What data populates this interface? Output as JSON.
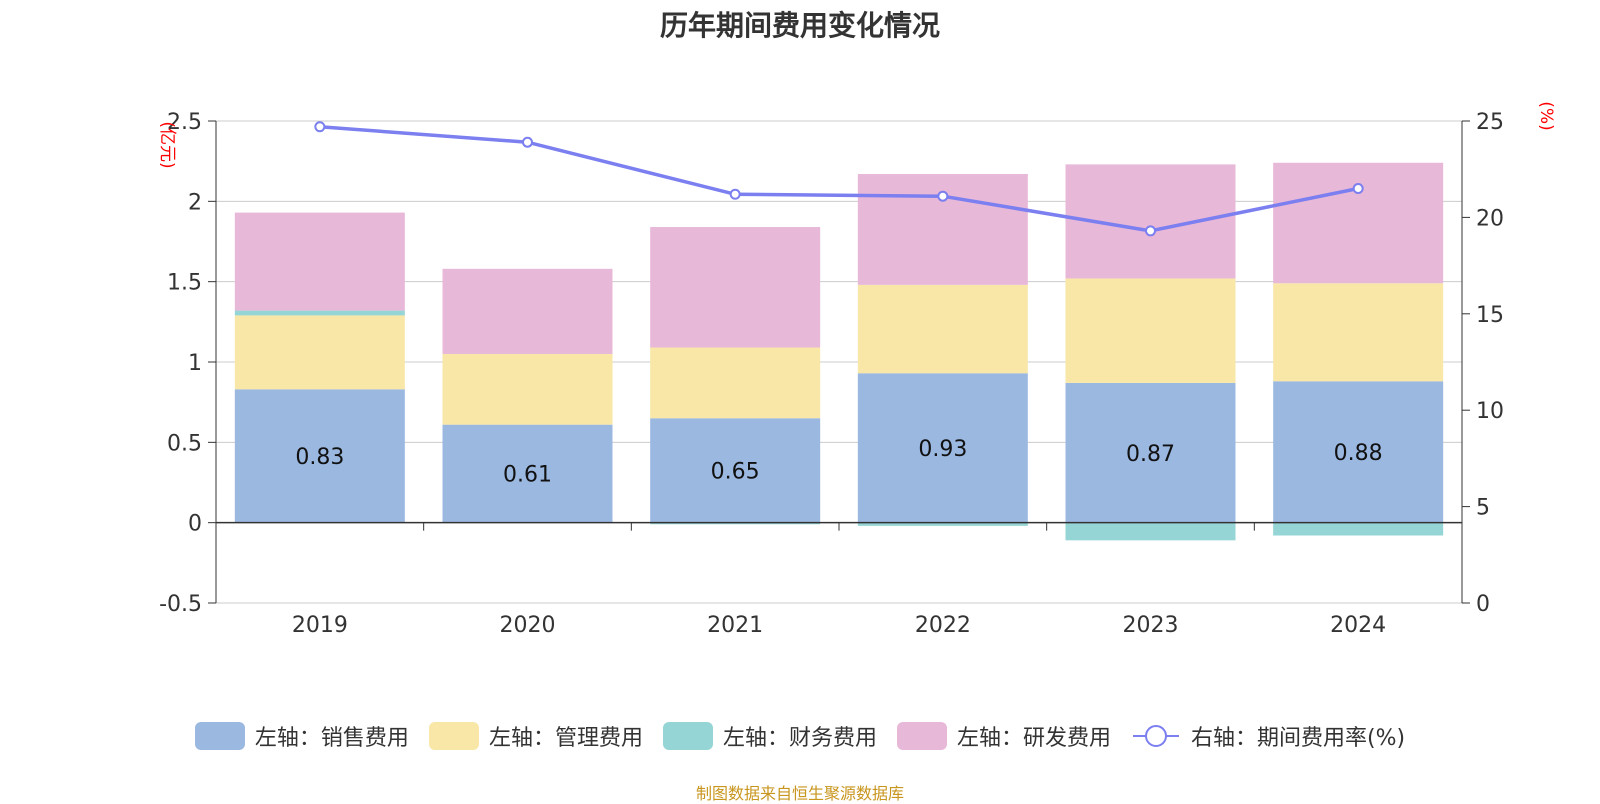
{
  "chart_data": {
    "type": "bar",
    "stacked": true,
    "title": "历年期间费用变化情况",
    "categories": [
      "2019",
      "2020",
      "2021",
      "2022",
      "2023",
      "2024"
    ],
    "left_axis": {
      "unit_label": "(亿元)",
      "ylim": [
        -0.5,
        2.5
      ],
      "ticks": [
        -0.5,
        0,
        0.5,
        1,
        1.5,
        2,
        2.5
      ],
      "tick_labels": [
        "-0.5",
        "0",
        "0.5",
        "1",
        "1.5",
        "2",
        "2.5"
      ]
    },
    "right_axis": {
      "unit_label": "(%)",
      "ylim": [
        0,
        25
      ],
      "ticks": [
        0,
        5,
        10,
        15,
        20,
        25
      ],
      "tick_labels": [
        "0",
        "5",
        "10",
        "15",
        "20",
        "25"
      ]
    },
    "series": [
      {
        "name": "左轴：销售费用",
        "axis": "left",
        "kind": "bar",
        "color": "#9bb8e1",
        "values": [
          0.83,
          0.61,
          0.65,
          0.93,
          0.87,
          0.88
        ],
        "labels": [
          "0.83",
          "0.61",
          "0.65",
          "0.93",
          "0.87",
          "0.88"
        ]
      },
      {
        "name": "左轴：管理费用",
        "axis": "left",
        "kind": "bar",
        "color": "#f8e7a7",
        "values": [
          0.46,
          0.44,
          0.44,
          0.55,
          0.65,
          0.61
        ]
      },
      {
        "name": "左轴：财务费用",
        "axis": "left",
        "kind": "bar",
        "color": "#96d5d5",
        "values": [
          0.03,
          0.0,
          -0.01,
          -0.02,
          -0.11,
          -0.08
        ]
      },
      {
        "name": "左轴：研发费用",
        "axis": "left",
        "kind": "bar",
        "color": "#e8b8d9",
        "values": [
          0.61,
          0.53,
          0.75,
          0.69,
          0.71,
          0.75
        ]
      },
      {
        "name": "右轴：期间费用率(%)",
        "axis": "right",
        "kind": "line",
        "color": "#7b7fef",
        "values": [
          24.7,
          23.9,
          21.2,
          21.1,
          19.3,
          21.5
        ]
      }
    ],
    "source_note": "制图数据来自恒生聚源数据库",
    "unit_color": "#ff0000",
    "source_color": "#c8961e"
  }
}
